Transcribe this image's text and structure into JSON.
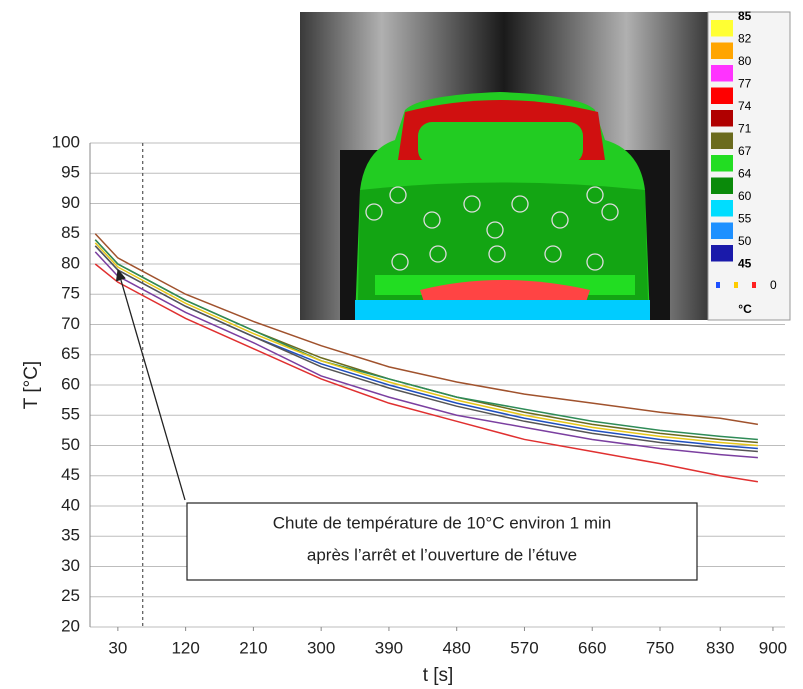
{
  "chart_data": {
    "type": "line",
    "xlabel": "t [s]",
    "ylabel": "T [°C]",
    "x": [
      0,
      30,
      120,
      210,
      300,
      390,
      480,
      570,
      660,
      750,
      830,
      880
    ],
    "xlim": [
      -7,
      916
    ],
    "xticks": [
      30,
      120,
      210,
      300,
      390,
      480,
      570,
      660,
      750,
      830,
      900
    ],
    "ylim": [
      20,
      100
    ],
    "yticks": [
      20,
      25,
      30,
      35,
      40,
      45,
      50,
      55,
      60,
      65,
      70,
      75,
      80,
      85,
      90,
      95,
      100
    ],
    "grid": true,
    "vline": 63,
    "annotation": [
      "Chute de température de 10°C environ 1  min",
      "après l’arrêt et l’ouverture de l’étuve"
    ],
    "series": [
      {
        "color": "#a0522d",
        "values": [
          85,
          81,
          75,
          70.5,
          66.5,
          63,
          60.5,
          58.5,
          57,
          55.5,
          54.5,
          53.5
        ]
      },
      {
        "color": "#6b6b1e",
        "values": [
          84,
          80,
          74,
          69,
          64.5,
          61,
          58,
          55.5,
          53.5,
          52,
          51,
          50.5
        ]
      },
      {
        "color": "#2e8b57",
        "values": [
          84,
          80,
          74,
          69,
          64,
          61,
          58,
          56,
          54,
          52.5,
          51.5,
          51
        ]
      },
      {
        "color": "#e6c619",
        "values": [
          83.5,
          79.5,
          73.5,
          68.5,
          64,
          60.5,
          57.5,
          55,
          53,
          51.5,
          50.5,
          50
        ]
      },
      {
        "color": "#1f4fbf",
        "values": [
          83,
          79,
          73,
          68,
          63.5,
          60,
          57,
          54.5,
          52.5,
          51,
          50,
          49.5
        ]
      },
      {
        "color": "#555555",
        "values": [
          83,
          79,
          73,
          68,
          63,
          59.5,
          56.5,
          54,
          52,
          50.5,
          49.5,
          49
        ]
      },
      {
        "color": "#7b3fa0",
        "values": [
          82,
          78,
          72,
          67,
          61.5,
          58,
          55,
          53,
          51,
          49.5,
          48.5,
          48
        ]
      },
      {
        "color": "#e03030",
        "values": [
          80,
          77,
          71,
          66,
          61,
          57,
          54,
          51,
          49,
          47,
          45,
          44
        ]
      }
    ]
  },
  "inset": {
    "scale": [
      "85",
      "82",
      "80",
      "77",
      "74",
      "71",
      "67",
      "64",
      "60",
      "55",
      "50",
      "45"
    ],
    "scale_colors": [
      "#ffff33",
      "#ffa500",
      "#ff33ff",
      "#ff0000",
      "#b00000",
      "#6b6b1e",
      "#22dd22",
      "#0a8a0a",
      "#00ddff",
      "#1e90ff",
      "#1a1aaa"
    ],
    "zero": "0",
    "unit": "°C"
  }
}
